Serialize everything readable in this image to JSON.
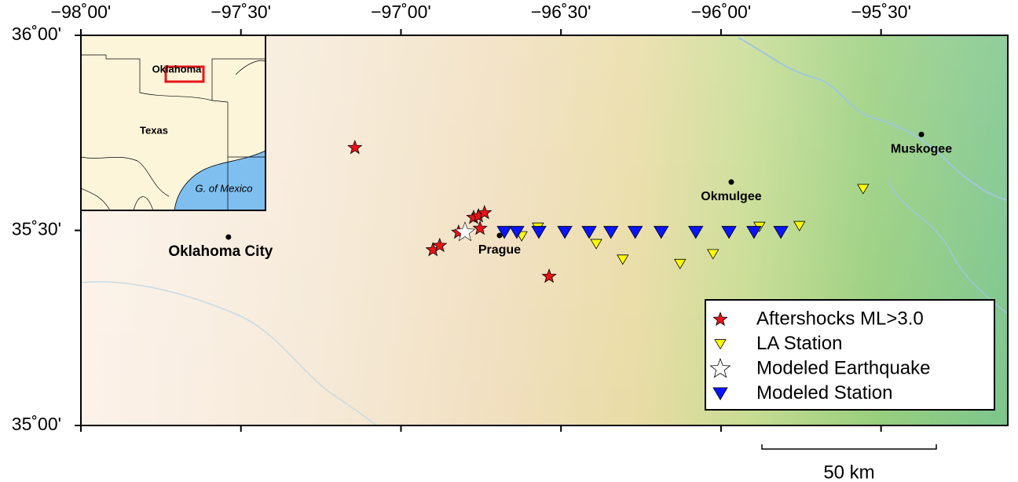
{
  "chart_data": {
    "type": "map",
    "xlim": [
      -98,
      -95.104
    ],
    "ylim": [
      35,
      36
    ],
    "xticks": [
      {
        "value": -98,
        "label": "−98˚00'"
      },
      {
        "value": -97.5,
        "label": "−97˚30'"
      },
      {
        "value": -97,
        "label": "−97˚00'"
      },
      {
        "value": -96.5,
        "label": "−96˚30'"
      },
      {
        "value": -96,
        "label": "−96˚00'"
      },
      {
        "value": -95.5,
        "label": "−95˚30'"
      }
    ],
    "yticks": [
      {
        "value": 35,
        "label": "35˚00'"
      },
      {
        "value": 35.5,
        "label": "35˚30'"
      },
      {
        "value": 36,
        "label": "36˚00'"
      }
    ],
    "legend": "lower right",
    "series": [
      {
        "name": "Aftershocks ML>3.0",
        "color": "#e8141a",
        "marker": "star",
        "x": [
          -97.144,
          -96.9,
          -96.879,
          -96.82,
          -96.773,
          -96.758,
          -96.739,
          -96.753,
          -96.537
        ],
        "values": [
          35.712,
          35.45,
          35.461,
          35.495,
          35.533,
          35.537,
          35.545,
          35.505,
          35.382
        ]
      },
      {
        "name": "LA Station",
        "color": "#ffff00",
        "marker": "triangle",
        "x": [
          -96.572,
          -96.623,
          -96.39,
          -96.307,
          -96.128,
          -96.025,
          -95.88,
          -95.755,
          -95.556
        ],
        "values": [
          35.507,
          35.485,
          35.465,
          35.425,
          35.414,
          35.439,
          35.509,
          35.511,
          35.606
        ]
      },
      {
        "name": "Modeled Earthquake",
        "color": "#ffffff",
        "marker": "bigstar",
        "x": [
          -96.8
        ],
        "values": [
          35.495
        ]
      },
      {
        "name": "Modeled Station",
        "color": "#0a14ff",
        "marker": "bigtriangle",
        "x": [
          -96.677,
          -96.638,
          -96.569,
          -96.488,
          -96.412,
          -96.344,
          -96.268,
          -96.187,
          -96.079,
          -95.975,
          -95.897,
          -95.813
        ],
        "values": [
          35.495,
          35.495,
          35.495,
          35.495,
          35.495,
          35.495,
          35.495,
          35.495,
          35.495,
          35.495,
          35.495,
          35.495
        ]
      }
    ],
    "cities": [
      {
        "name": "Oklahoma City",
        "x": -97.539,
        "y": 35.483
      },
      {
        "name": "Prague",
        "x": -96.692,
        "y": 35.487
      },
      {
        "name": "Okmulgee",
        "x": -95.968,
        "y": 35.624
      },
      {
        "name": "Muskogee",
        "x": -95.374,
        "y": 35.746
      }
    ],
    "inset": {
      "labels": [
        "Oklahoma",
        "Texas",
        "G. of Mexico"
      ]
    },
    "scale_bar": "50 km"
  }
}
